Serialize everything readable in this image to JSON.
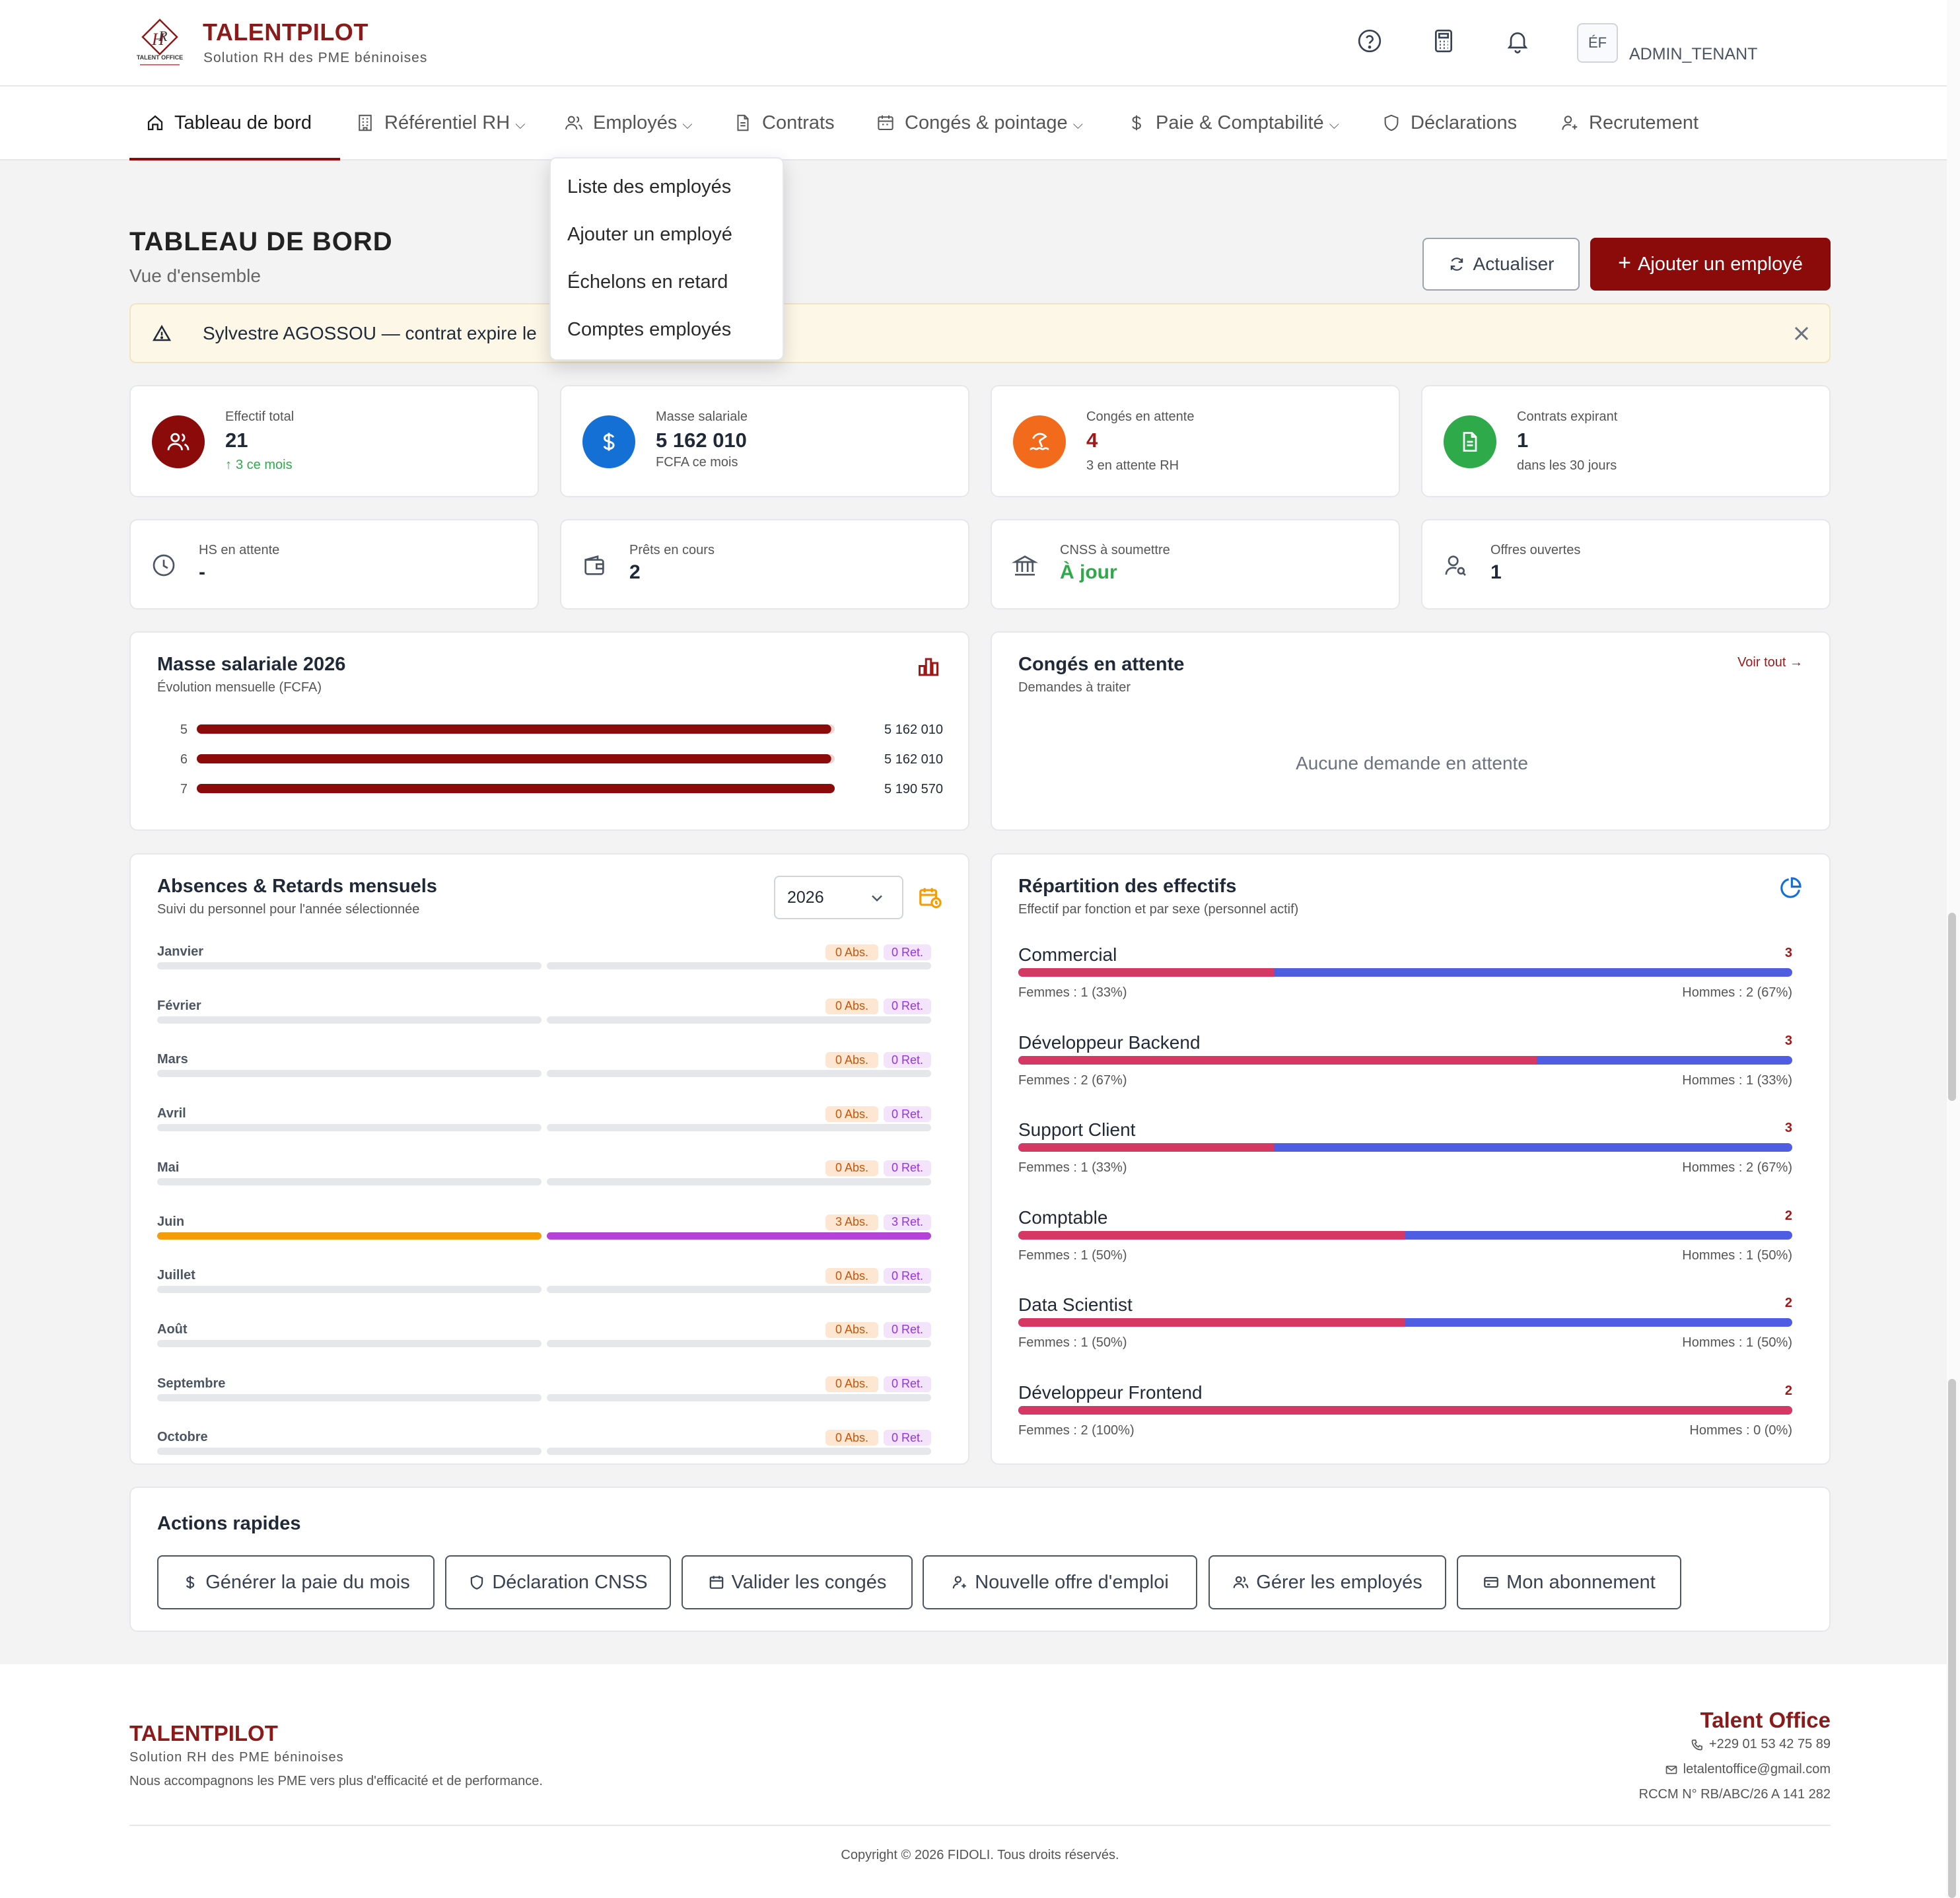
{
  "header": {
    "brand": "TALENTPILOT",
    "tagline": "Solution RH des PME béninoises",
    "logo_caption": "TALENT OFFICE",
    "avatar_initials": "ÉF",
    "user_role": "ADMIN_TENANT",
    "icons": [
      "help-icon",
      "calculator-icon",
      "bell-icon"
    ]
  },
  "nav": {
    "items": [
      {
        "label": "Tableau de bord",
        "icon": "home-icon",
        "active": true
      },
      {
        "label": "Référentiel RH",
        "icon": "building-icon",
        "dropdown": true
      },
      {
        "label": "Employés",
        "icon": "users-icon",
        "dropdown": true
      },
      {
        "label": "Contrats",
        "icon": "document-icon"
      },
      {
        "label": "Congés & pointage",
        "icon": "calendar-icon",
        "dropdown": true
      },
      {
        "label": "Paie & Comptabilité",
        "icon": "dollar-icon",
        "dropdown": true
      },
      {
        "label": "Déclarations",
        "icon": "shield-icon"
      },
      {
        "label": "Recrutement",
        "icon": "user-plus-icon"
      }
    ],
    "employees_menu": [
      "Liste des employés",
      "Ajouter un employé",
      "Échelons en retard",
      "Comptes employés"
    ]
  },
  "page": {
    "title": "TABLEAU DE BORD",
    "subtitle": "Vue d'ensemble",
    "refresh_label": "Actualiser",
    "add_employee_label": "Ajouter un employé"
  },
  "alert": {
    "text": "Sylvestre AGOSSOU — contrat expire le"
  },
  "stats": [
    {
      "label": "Effectif total",
      "value": "21",
      "note": "3 ce mois",
      "color": "#8b0a0a"
    },
    {
      "label": "Masse salariale",
      "value": "5 162 010",
      "note": "FCFA ce mois",
      "color": "#1570d6"
    },
    {
      "label": "Congés en attente",
      "value": "4",
      "note": "3 en attente RH",
      "color": "#f26a1b"
    },
    {
      "label": "Contrats expirant",
      "value": "1",
      "note": "dans les 30 jours",
      "color": "#2eaa4a"
    }
  ],
  "stats2": [
    {
      "label": "HS en attente",
      "value": "-"
    },
    {
      "label": "Prêts en cours",
      "value": "2"
    },
    {
      "label": "CNSS à soumettre",
      "value": "À jour"
    },
    {
      "label": "Offres ouvertes",
      "value": "1"
    }
  ],
  "masse": {
    "title": "Masse salariale 2026",
    "subtitle": "Évolution mensuelle (FCFA)"
  },
  "chart_data": {
    "type": "bar",
    "orientation": "horizontal",
    "title": "Masse salariale 2026",
    "subtitle": "Évolution mensuelle (FCFA)",
    "categories": [
      "5",
      "6",
      "7"
    ],
    "values": [
      5162010,
      5162010,
      5190570
    ],
    "value_labels": [
      "5 162 010",
      "5 162 010",
      "5 190 570"
    ],
    "color": "#8b0a0a"
  },
  "conges": {
    "title": "Congés en attente",
    "subtitle": "Demandes à traiter",
    "link": "Voir tout →",
    "empty": "Aucune demande en attente"
  },
  "absences": {
    "title": "Absences & Retards mensuels",
    "subtitle": "Suivi du personnel pour l'année sélectionnée",
    "year": "2026",
    "abs_color": "#f29e0c",
    "ret_color": "#b543d4",
    "months": [
      {
        "name": "Janvier",
        "abs": "0 Abs.",
        "ret": "0 Ret.",
        "abs_level": 0,
        "ret_level": 0
      },
      {
        "name": "Février",
        "abs": "0 Abs.",
        "ret": "0 Ret.",
        "abs_level": 0,
        "ret_level": 0
      },
      {
        "name": "Mars",
        "abs": "0 Abs.",
        "ret": "0 Ret.",
        "abs_level": 0,
        "ret_level": 0
      },
      {
        "name": "Avril",
        "abs": "0 Abs.",
        "ret": "0 Ret.",
        "abs_level": 0,
        "ret_level": 0
      },
      {
        "name": "Mai",
        "abs": "0 Abs.",
        "ret": "0 Ret.",
        "abs_level": 0,
        "ret_level": 0
      },
      {
        "name": "Juin",
        "abs": "3 Abs.",
        "ret": "3 Ret.",
        "abs_level": 1,
        "ret_level": 1
      },
      {
        "name": "Juillet",
        "abs": "0 Abs.",
        "ret": "0 Ret.",
        "abs_level": 0,
        "ret_level": 0
      },
      {
        "name": "Août",
        "abs": "0 Abs.",
        "ret": "0 Ret.",
        "abs_level": 0,
        "ret_level": 0
      },
      {
        "name": "Septembre",
        "abs": "0 Abs.",
        "ret": "0 Ret.",
        "abs_level": 0,
        "ret_level": 0
      },
      {
        "name": "Octobre",
        "abs": "0 Abs.",
        "ret": "0 Ret.",
        "abs_level": 0,
        "ret_level": 0
      }
    ]
  },
  "repartition": {
    "title": "Répartition des effectifs",
    "subtitle": "Effectif par fonction et par sexe (personnel actif)",
    "female_color": "#d63864",
    "male_color": "#4f5de3",
    "rows": [
      {
        "name": "Commercial",
        "count": "3",
        "female_share": 0.33,
        "femmes": "Femmes : 1 (33%)",
        "hommes": "Hommes : 2 (67%)"
      },
      {
        "name": "Développeur Backend",
        "count": "3",
        "female_share": 0.67,
        "femmes": "Femmes : 2 (67%)",
        "hommes": "Hommes : 1 (33%)"
      },
      {
        "name": "Support Client",
        "count": "3",
        "female_share": 0.33,
        "femmes": "Femmes : 1 (33%)",
        "hommes": "Hommes : 2 (67%)"
      },
      {
        "name": "Comptable",
        "count": "2",
        "female_share": 0.5,
        "femmes": "Femmes : 1 (50%)",
        "hommes": "Hommes : 1 (50%)"
      },
      {
        "name": "Data Scientist",
        "count": "2",
        "female_share": 0.5,
        "femmes": "Femmes : 1 (50%)",
        "hommes": "Hommes : 1 (50%)"
      },
      {
        "name": "Développeur Frontend",
        "count": "2",
        "female_share": 1,
        "femmes": "Femmes : 2 (100%)",
        "hommes": "Hommes : 0 (0%)"
      }
    ]
  },
  "quick_actions": {
    "title": "Actions rapides",
    "items": [
      {
        "label": "Générer la paie du mois",
        "icon": "dollar-icon"
      },
      {
        "label": "Déclaration CNSS",
        "icon": "shield-icon"
      },
      {
        "label": "Valider les congés",
        "icon": "calendar-icon"
      },
      {
        "label": "Nouvelle offre d'emploi",
        "icon": "user-plus-icon"
      },
      {
        "label": "Gérer les employés",
        "icon": "users-icon"
      },
      {
        "label": "Mon abonnement",
        "icon": "card-icon"
      }
    ]
  },
  "footer": {
    "brand": "TALENTPILOT",
    "tagline": "Solution RH des PME béninoises",
    "description": "Nous accompagnons les PME vers plus d'efficacité et de performance.",
    "company": "Talent Office",
    "phone": "+229 01 53 42 75 89",
    "email": "letalentoffice@gmail.com",
    "rccm": "RCCM N° RB/ABC/26 A 141 282",
    "copyright": "Copyright © 2026 FIDOLI. Tous droits réservés."
  }
}
